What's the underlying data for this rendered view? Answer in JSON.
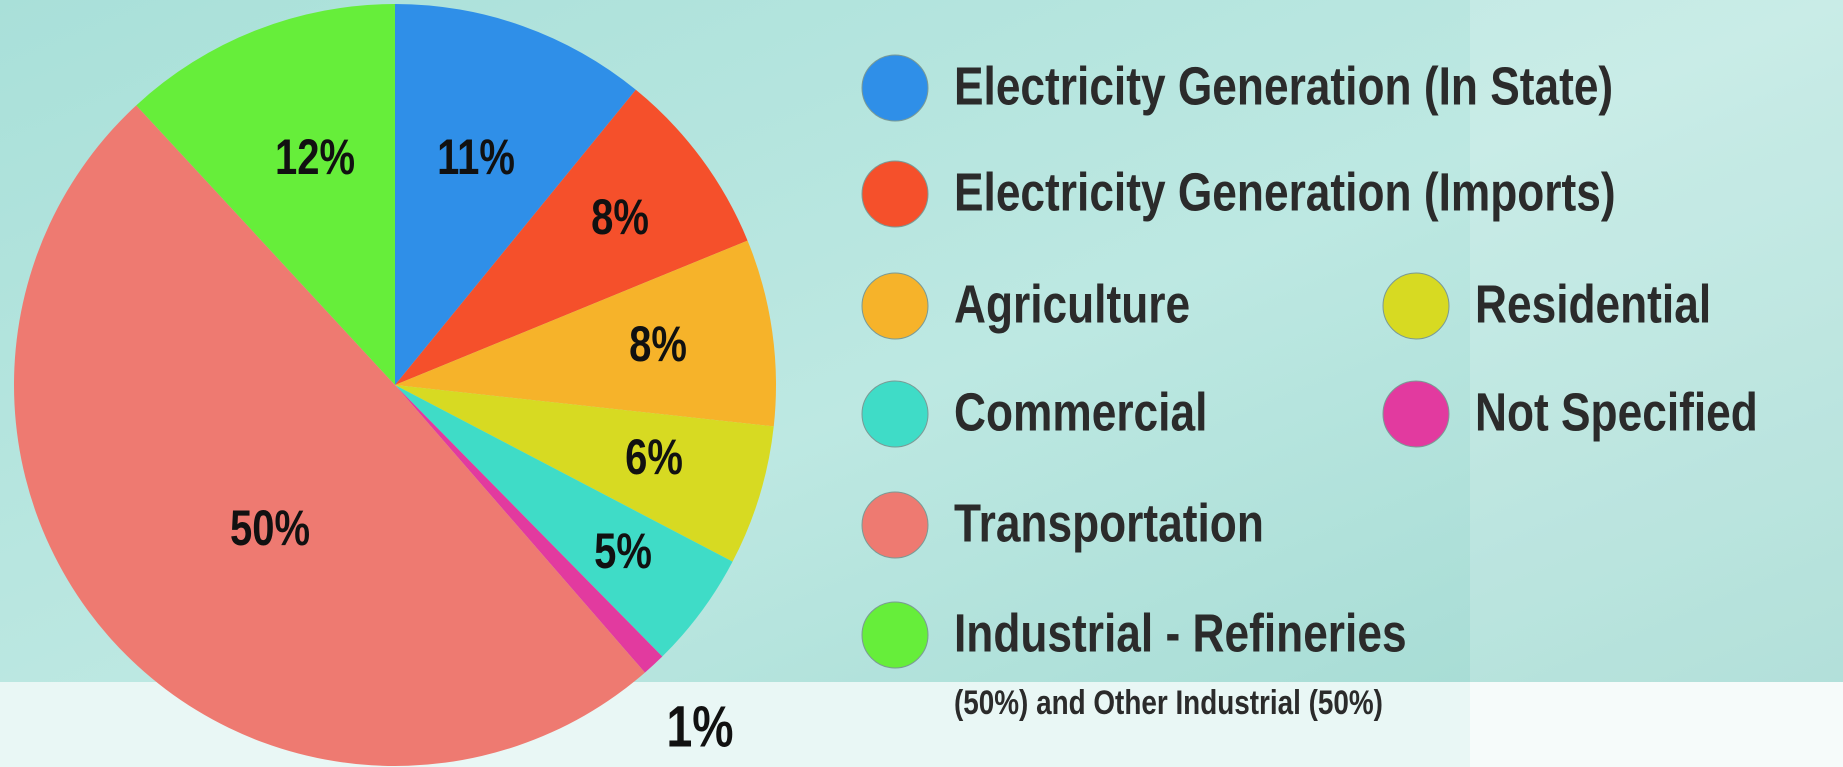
{
  "chart_data": {
    "type": "pie",
    "categories": [
      "Electricity Generation (In State)",
      "Electricity Generation (Imports)",
      "Agriculture",
      "Residential",
      "Commercial",
      "Not Specified",
      "Transportation",
      "Industrial - Refineries"
    ],
    "values": [
      11,
      8,
      8,
      6,
      5,
      1,
      50,
      12
    ],
    "value_labels": [
      "11%",
      "8%",
      "8%",
      "6%",
      "5%",
      "1%",
      "50%",
      "12%"
    ],
    "colors": [
      "#2f8fe8",
      "#f5502b",
      "#f6b32a",
      "#d7da22",
      "#3fdcc7",
      "#e23a9f",
      "#ee7a71",
      "#66ee3a"
    ],
    "legend_note": "(50%) and Other Industrial (50%)"
  }
}
